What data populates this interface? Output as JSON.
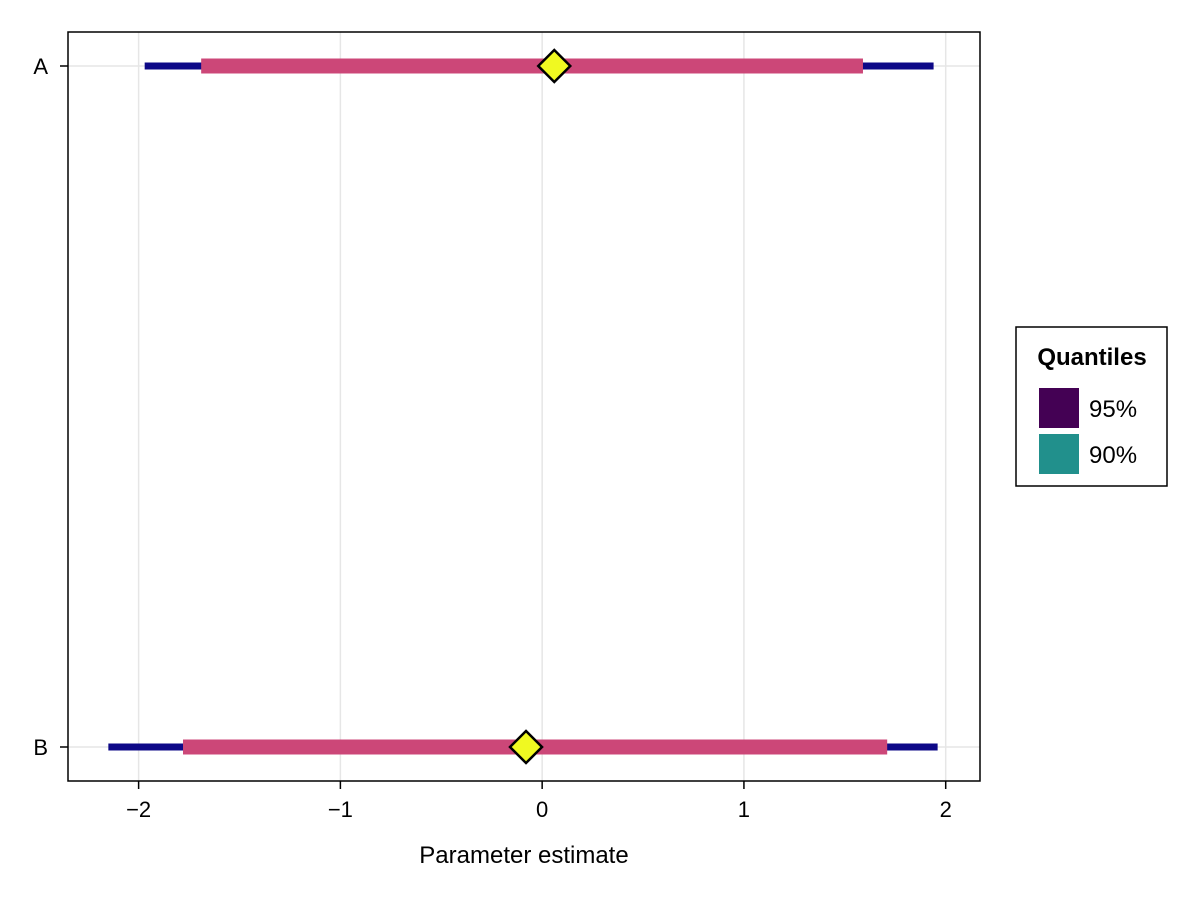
{
  "chart_data": {
    "type": "interval",
    "xlabel": "Parameter estimate",
    "xlim": [
      -2.35,
      2.17
    ],
    "xticks": [
      -2,
      -1,
      0,
      1,
      2
    ],
    "xtick_labels": [
      "−2",
      "−1",
      "0",
      "1",
      "2"
    ],
    "grid": true,
    "categories": [
      "A",
      "B"
    ],
    "series": [
      {
        "label": "A",
        "outer": [
          -1.97,
          1.94
        ],
        "inner": [
          -1.69,
          1.59
        ],
        "estimate": 0.06
      },
      {
        "label": "B",
        "outer": [
          -2.15,
          1.96
        ],
        "inner": [
          -1.78,
          1.71
        ],
        "estimate": -0.08
      }
    ],
    "colors": {
      "outer_line": "#0d0887",
      "inner_line": "#cc4778",
      "marker_fill": "#f0f921",
      "marker_stroke": "#000000",
      "grid": "#e6e6e6"
    },
    "legend": {
      "title": "Quantiles",
      "placement": "right",
      "items": [
        {
          "label": "95%",
          "color": "#440154"
        },
        {
          "label": "90%",
          "color": "#21908c"
        }
      ]
    }
  }
}
